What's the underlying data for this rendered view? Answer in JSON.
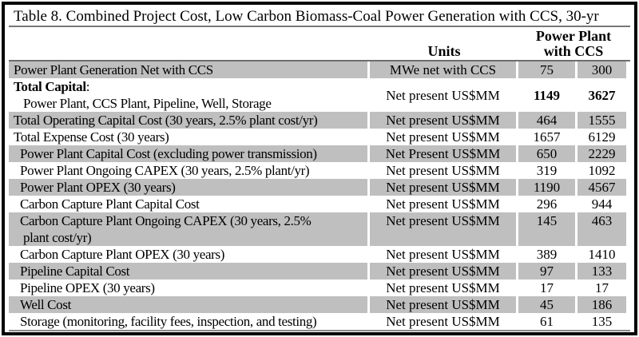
{
  "title": "Table 8. Combined Project Cost, Low Carbon Biomass-Coal Power Generation with CCS, 30-yr",
  "header": {
    "units": "Units",
    "group_line1": "Power Plant",
    "group_line2": "with CCS"
  },
  "colors": {
    "shaded_row": "#bfbfbf",
    "frame_border": "#060606",
    "rule": "#777777"
  },
  "rows": [
    {
      "label": "Power Plant Generation Net with CCS",
      "units": "MWe net with CCS",
      "v1": "75",
      "v2": "300",
      "shaded": true,
      "indent": 0
    },
    {
      "label": "Total Capital",
      "suffix": ":",
      "label2": "Power Plant, CCS Plant, Pipeline, Well, Storage",
      "units": "Net present US$MM",
      "v1": "1149",
      "v2": "3627",
      "shaded": false,
      "indent": 0,
      "bold_label": true,
      "bold_values": true,
      "valign": "center"
    },
    {
      "label": "Total Operating Capital Cost (30 years, 2.5% plant cost/yr)",
      "units": "Net present US$MM",
      "v1": "464",
      "v2": "1555",
      "shaded": true,
      "indent": 0
    },
    {
      "label": "Total Expense Cost (30 years)",
      "units": "Net present US$MM",
      "v1": "1657",
      "v2": "6129",
      "shaded": false,
      "indent": 0
    },
    {
      "label": "Power Plant Capital Cost (excluding power transmission)",
      "units": "Net Present US$MM",
      "v1": "650",
      "v2": "2229",
      "shaded": true,
      "indent": 1
    },
    {
      "label": "Power Plant Ongoing CAPEX (30 years, 2.5% plant/yr)",
      "units": "Net present US$MM",
      "v1": "319",
      "v2": "1092",
      "shaded": false,
      "indent": 1
    },
    {
      "label": "Power Plant OPEX (30 years)",
      "units": "Net present US$MM",
      "v1": "1190",
      "v2": "4567",
      "shaded": true,
      "indent": 1
    },
    {
      "label": "Carbon Capture Plant Capital Cost",
      "units": "Net present US$MM",
      "v1": "296",
      "v2": "944",
      "shaded": false,
      "indent": 1
    },
    {
      "label": "Carbon Capture Plant Ongoing CAPEX (30 years, 2.5%",
      "label2": "plant cost/yr)",
      "units": "Net present US$MM",
      "v1": "145",
      "v2": "463",
      "shaded": true,
      "indent": 1,
      "valign": "top"
    },
    {
      "label": "Carbon Capture Plant OPEX (30 years)",
      "units": "Net present US$MM",
      "v1": "389",
      "v2": "1410",
      "shaded": false,
      "indent": 1
    },
    {
      "label": "Pipeline Capital Cost",
      "units": "Net present US$MM",
      "v1": "97",
      "v2": "133",
      "shaded": true,
      "indent": 1
    },
    {
      "label": "Pipeline OPEX (30 years)",
      "units": "Net present US$MM",
      "v1": "17",
      "v2": "17",
      "shaded": false,
      "indent": 1
    },
    {
      "label": "Well Cost",
      "units": "Net present US$MM",
      "v1": "45",
      "v2": "186",
      "shaded": true,
      "indent": 1
    },
    {
      "label": "Storage (monitoring, facility fees, inspection, and testing)",
      "units": "Net present US$MM",
      "v1": "61",
      "v2": "135",
      "shaded": false,
      "indent": 1
    }
  ]
}
